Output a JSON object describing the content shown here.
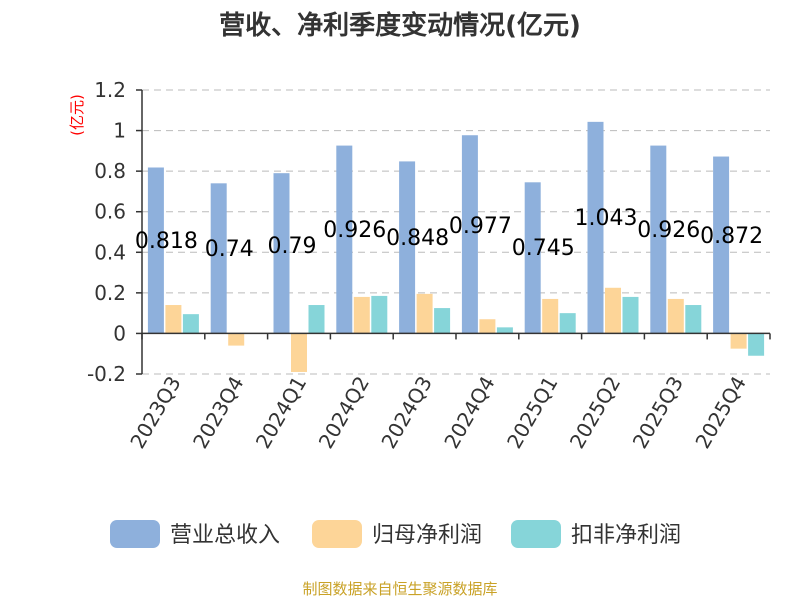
{
  "chart_data": {
    "type": "bar",
    "title": "营收、净利季度变动情况(亿元)",
    "ylabel": "(亿元)",
    "xlabel": "",
    "ylim": [
      -0.2,
      1.2
    ],
    "yticks": [
      1.2,
      1,
      0.8,
      0.6,
      0.4,
      0.2,
      0,
      -0.2
    ],
    "ytick_labels": [
      "1.2",
      "1",
      "0.8",
      "0.6",
      "0.4",
      "0.2",
      "0",
      "-0.2"
    ],
    "categories": [
      "2023Q3",
      "2023Q4",
      "2024Q1",
      "2024Q2",
      "2024Q3",
      "2024Q4",
      "2025Q1",
      "2025Q2",
      "2025Q3",
      "2025Q4"
    ],
    "series": [
      {
        "name": "营业总收入",
        "color": "#8eb0dc",
        "values": [
          0.818,
          0.74,
          0.79,
          0.926,
          0.848,
          0.977,
          0.745,
          1.043,
          0.926,
          0.872
        ],
        "labels": [
          "0.818",
          "0.74",
          "0.79",
          "0.926",
          "0.848",
          "0.977",
          "0.745",
          "1.043",
          "0.926",
          "0.872"
        ]
      },
      {
        "name": "归母净利润",
        "color": "#fdd598",
        "values": [
          0.14,
          -0.06,
          -0.19,
          0.18,
          0.195,
          0.07,
          0.17,
          0.225,
          0.17,
          -0.075
        ]
      },
      {
        "name": "扣非净利润",
        "color": "#86d5d9",
        "values": [
          0.095,
          0.0,
          0.14,
          0.185,
          0.125,
          0.03,
          0.1,
          0.18,
          0.14,
          -0.11
        ]
      }
    ],
    "grid": true,
    "legend_position": "bottom"
  },
  "source": "制图数据来自恒生聚源数据库"
}
